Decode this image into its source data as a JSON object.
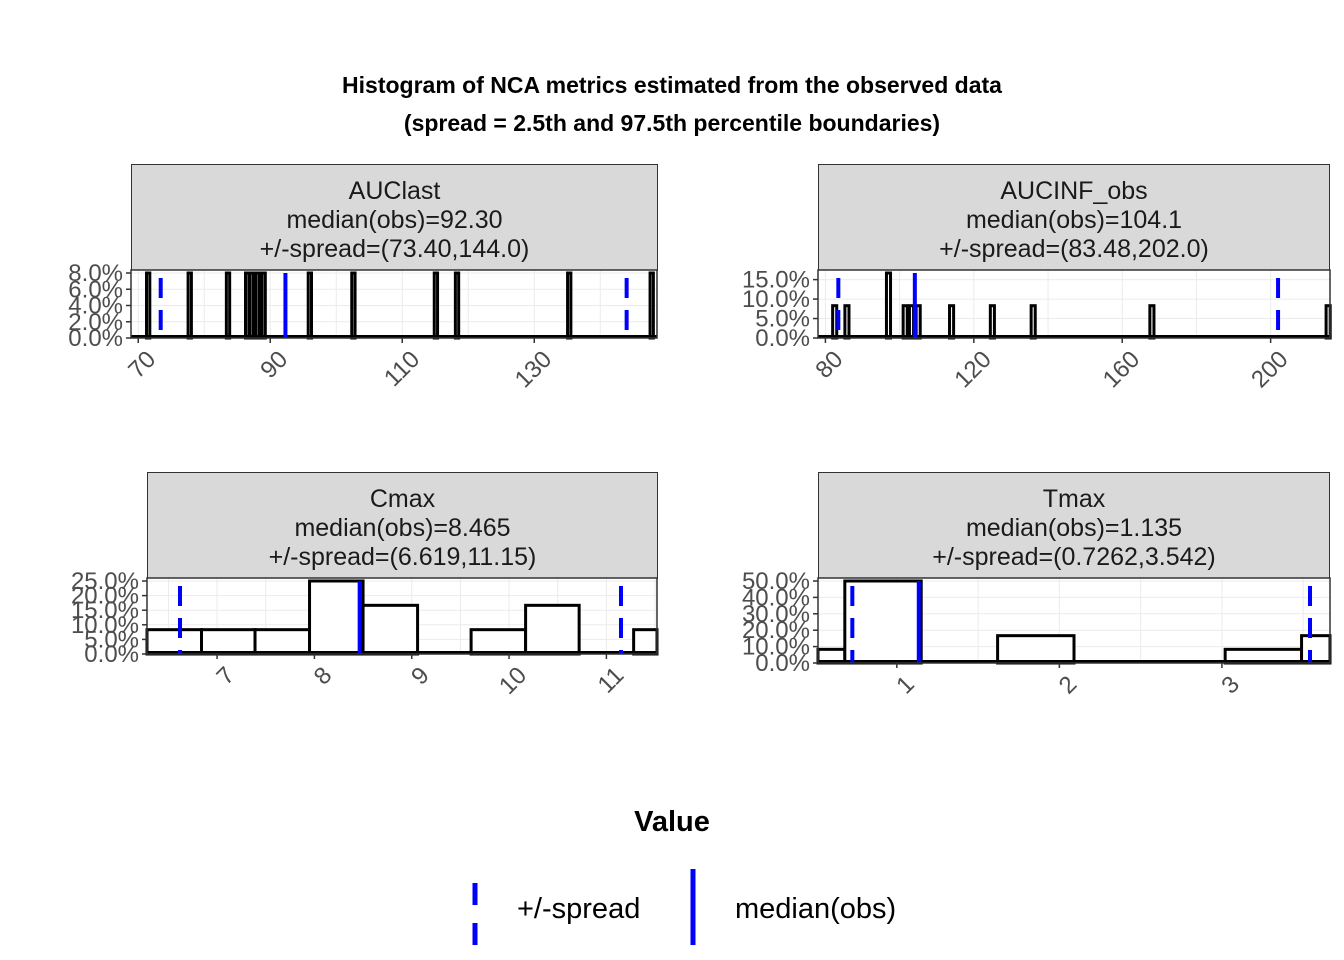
{
  "title": "Histogram of NCA metrics estimated from the observed data",
  "subtitle": "(spread = 2.5th and 97.5th percentile boundaries)",
  "xlabel": "Value",
  "legend": {
    "spread_label": "+/-spread",
    "median_label": "median(obs)",
    "color": "#0000ff"
  },
  "chart_data": [
    {
      "type": "bar",
      "panel": "AUClast",
      "strip": [
        "AUClast",
        "median(obs)=92.30",
        "+/-spread=(73.40,144.0)"
      ],
      "median": 92.3,
      "spread": [
        73.4,
        144.0
      ],
      "xlim": [
        68.9,
        148.6
      ],
      "ylim": [
        0,
        0.08
      ],
      "xticks": [
        70,
        90,
        110,
        130
      ],
      "yticks": [
        "0.0%",
        "2.0%",
        "4.0%",
        "6.0%",
        "8.0%"
      ],
      "ytick_values": [
        0,
        0.02,
        0.04,
        0.06,
        0.08
      ],
      "bar_width": 0.5,
      "bars": [
        [
          71.5,
          0.08
        ],
        [
          77.8,
          0.08
        ],
        [
          83.6,
          0.08
        ],
        [
          86.5,
          0.08
        ],
        [
          87.2,
          0.08
        ],
        [
          88.1,
          0.08
        ],
        [
          89.0,
          0.08
        ],
        [
          96.0,
          0.08
        ],
        [
          102.6,
          0.08
        ],
        [
          115.1,
          0.08
        ],
        [
          118.3,
          0.08
        ],
        [
          135.3,
          0.08
        ],
        [
          147.8,
          0.08
        ]
      ]
    },
    {
      "type": "bar",
      "panel": "AUCINF_obs",
      "strip": [
        "AUCINF_obs",
        "median(obs)=104.1",
        "+/-spread=(83.48,202.0)"
      ],
      "median": 104.1,
      "spread": [
        83.48,
        202.0
      ],
      "xlim": [
        78.0,
        216.0
      ],
      "ylim": [
        0,
        0.167
      ],
      "xticks": [
        80,
        120,
        160,
        200
      ],
      "yticks": [
        "0.0%",
        "5.0%",
        "10.0%",
        "15.0%"
      ],
      "ytick_values": [
        0,
        0.05,
        0.1,
        0.15
      ],
      "bar_width": 1.1,
      "bars": [
        [
          82.5,
          0.083
        ],
        [
          85.8,
          0.083
        ],
        [
          97.0,
          0.167
        ],
        [
          101.5,
          0.083
        ],
        [
          103.2,
          0.083
        ],
        [
          105.0,
          0.083
        ],
        [
          114.0,
          0.083
        ],
        [
          125.0,
          0.083
        ],
        [
          136.0,
          0.083
        ],
        [
          168.0,
          0.083
        ],
        [
          215.5,
          0.083
        ]
      ]
    },
    {
      "type": "bar",
      "panel": "Cmax",
      "strip": [
        "Cmax",
        "median(obs)=8.465",
        "+/-spread=(6.619,11.15)"
      ],
      "median": 8.465,
      "spread": [
        6.619,
        11.15
      ],
      "xlim": [
        6.28,
        11.52
      ],
      "ylim": [
        0,
        0.25
      ],
      "xticks": [
        7,
        8,
        9,
        10,
        11
      ],
      "yticks": [
        "0.0%",
        "5.0%",
        "10.0%",
        "15.0%",
        "20.0%",
        "25.0%"
      ],
      "ytick_values": [
        0,
        0.05,
        0.1,
        0.15,
        0.2,
        0.25
      ],
      "edges": [
        6.28,
        6.84,
        7.39,
        7.95,
        8.5,
        9.06,
        9.61,
        10.17,
        10.72,
        11.28,
        11.52
      ],
      "heights": [
        0.0833,
        0.0833,
        0.0833,
        0.25,
        0.1667,
        0,
        0.0833,
        0.1667,
        0,
        0.0833
      ]
    },
    {
      "type": "bar",
      "panel": "Tmax",
      "strip": [
        "Tmax",
        "median(obs)=1.135",
        "+/-spread=(0.7262,3.542)"
      ],
      "median": 1.135,
      "spread": [
        0.7262,
        3.542
      ],
      "xlim": [
        0.515,
        3.665
      ],
      "ylim": [
        0,
        0.5
      ],
      "xticks": [
        1,
        2,
        3
      ],
      "yticks": [
        "0.0%",
        "10.0%",
        "20.0%",
        "30.0%",
        "40.0%",
        "50.0%"
      ],
      "ytick_values": [
        0,
        0.1,
        0.2,
        0.3,
        0.4,
        0.5
      ],
      "edges": [
        0.515,
        0.68,
        1.15,
        1.62,
        2.09,
        2.55,
        3.02,
        3.49,
        3.665
      ],
      "heights": [
        0.0833,
        0.5,
        0,
        0.1667,
        0,
        0,
        0.0833,
        0.1667
      ]
    }
  ]
}
